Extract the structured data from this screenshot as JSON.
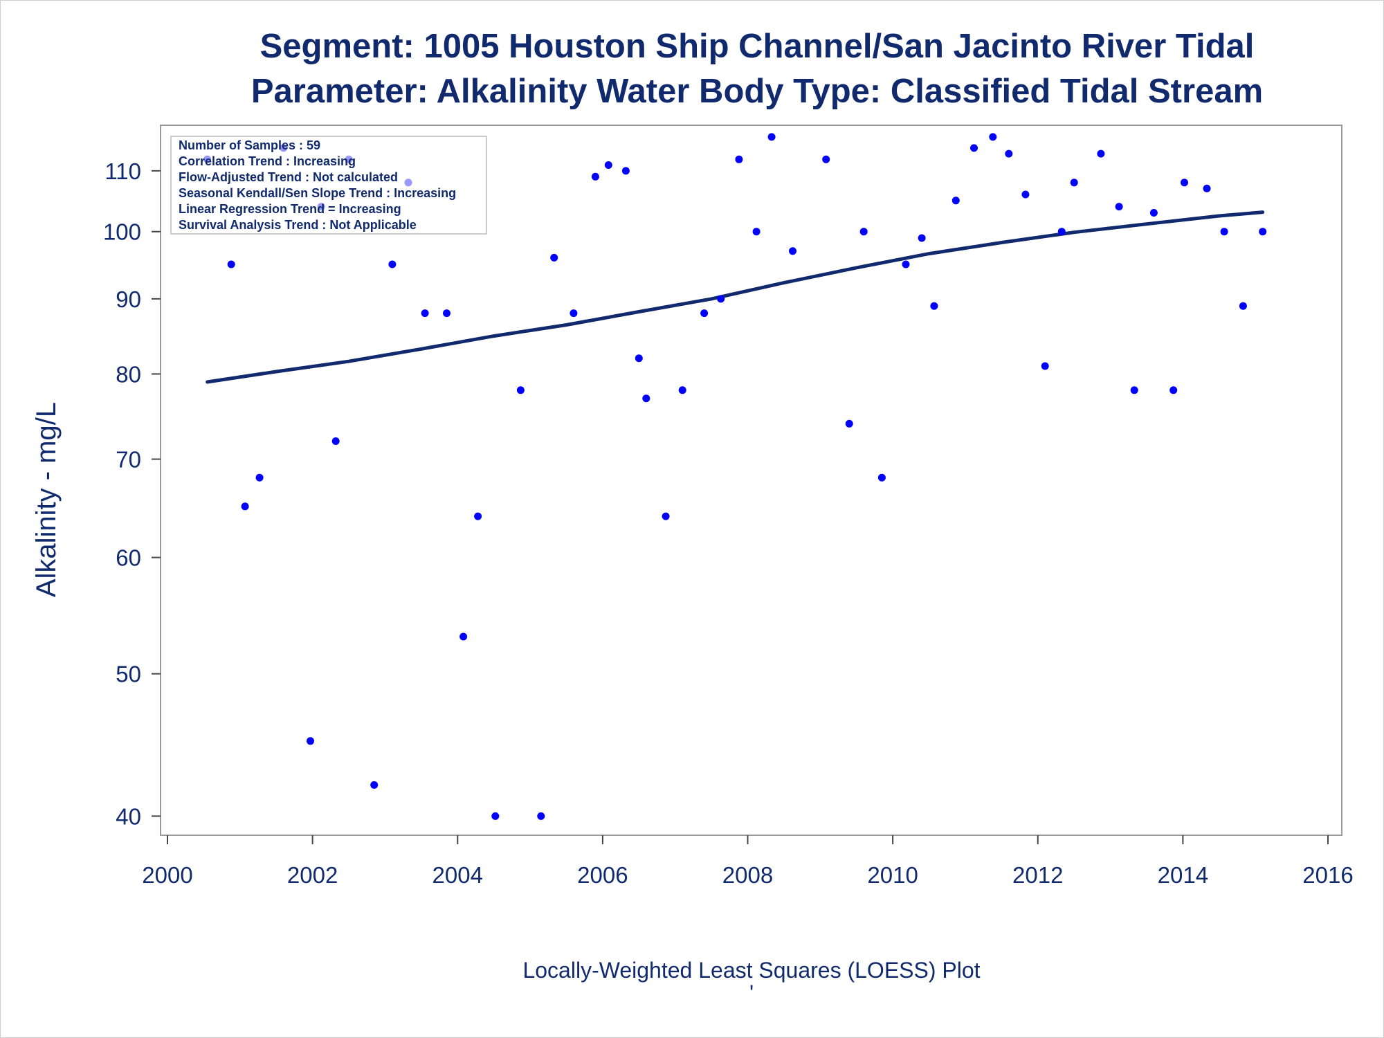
{
  "chart_data": {
    "type": "scatter",
    "title": "Segment: 1005  Houston Ship Channel/San Jacinto River Tidal",
    "subtitle": "Parameter: Alkalinity   Water Body Type: Classified Tidal Stream",
    "xlabel": "Locally-Weighted Least Squares (LOESS) Plot",
    "footnote": "'",
    "ylabel": "Alkalinity - mg/L",
    "y_scale": "log",
    "xlim": [
      2000,
      2016
    ],
    "ylim": [
      39.2,
      117
    ],
    "x_ticks": [
      "2000",
      "2002",
      "2004",
      "2006",
      "2008",
      "2010",
      "2012",
      "2014",
      "2016"
    ],
    "y_ticks": [
      "40",
      "50",
      "60",
      "70",
      "80",
      "90",
      "100",
      "110"
    ],
    "stats_box": {
      "placement": "top-left",
      "lines": [
        "Number of Samples : 59",
        "Correlation Trend : Increasing",
        "Flow-Adjusted Trend : Not calculated",
        "Seasonal Kendall/Sen Slope Trend : Increasing",
        "Linear Regression Trend = Increasing",
        "Survival Analysis Trend : Not Applicable"
      ]
    },
    "series": [
      {
        "type": "scatter",
        "color": "#0000ff",
        "points": [
          [
            2000.55,
            112
          ],
          [
            2000.88,
            95
          ],
          [
            2001.07,
            65
          ],
          [
            2001.27,
            68
          ],
          [
            2001.6,
            114
          ],
          [
            2001.97,
            45
          ],
          [
            2002.12,
            104
          ],
          [
            2002.32,
            72
          ],
          [
            2002.5,
            112
          ],
          [
            2002.85,
            42
          ],
          [
            2003.1,
            95
          ],
          [
            2003.32,
            108
          ],
          [
            2003.55,
            88
          ],
          [
            2003.85,
            88
          ],
          [
            2004.08,
            53
          ],
          [
            2004.28,
            64
          ],
          [
            2004.52,
            40
          ],
          [
            2004.87,
            78
          ],
          [
            2005.15,
            40
          ],
          [
            2005.33,
            96
          ],
          [
            2005.6,
            88
          ],
          [
            2005.9,
            109
          ],
          [
            2006.08,
            111
          ],
          [
            2006.32,
            110
          ],
          [
            2006.5,
            82
          ],
          [
            2006.6,
            77
          ],
          [
            2006.87,
            64
          ],
          [
            2007.1,
            78
          ],
          [
            2007.4,
            88
          ],
          [
            2007.63,
            90
          ],
          [
            2007.88,
            112
          ],
          [
            2008.12,
            100
          ],
          [
            2008.33,
            116
          ],
          [
            2008.62,
            97
          ],
          [
            2009.08,
            112
          ],
          [
            2009.4,
            74
          ],
          [
            2009.6,
            100
          ],
          [
            2009.85,
            68
          ],
          [
            2010.18,
            95
          ],
          [
            2010.4,
            99
          ],
          [
            2010.57,
            89
          ],
          [
            2010.87,
            105
          ],
          [
            2011.12,
            114
          ],
          [
            2011.38,
            116
          ],
          [
            2011.6,
            113
          ],
          [
            2011.83,
            106
          ],
          [
            2012.1,
            81
          ],
          [
            2012.33,
            100
          ],
          [
            2012.5,
            108
          ],
          [
            2012.87,
            113
          ],
          [
            2013.12,
            104
          ],
          [
            2013.33,
            78
          ],
          [
            2013.6,
            103
          ],
          [
            2013.87,
            78
          ],
          [
            2014.02,
            108
          ],
          [
            2014.33,
            107
          ],
          [
            2014.57,
            100
          ],
          [
            2014.83,
            89
          ],
          [
            2015.1,
            100
          ]
        ]
      },
      {
        "type": "line",
        "color": "#112a6e",
        "points": [
          [
            2000.55,
            79
          ],
          [
            2001.5,
            80.3
          ],
          [
            2002.5,
            81.6
          ],
          [
            2003.5,
            83.2
          ],
          [
            2004.5,
            84.9
          ],
          [
            2005.5,
            86.4
          ],
          [
            2006.5,
            88.2
          ],
          [
            2007.5,
            90.0
          ],
          [
            2008.5,
            92.3
          ],
          [
            2009.5,
            94.5
          ],
          [
            2010.5,
            96.6
          ],
          [
            2011.5,
            98.3
          ],
          [
            2012.5,
            99.9
          ],
          [
            2013.5,
            101.2
          ],
          [
            2014.5,
            102.5
          ],
          [
            2015.1,
            103.1
          ]
        ]
      }
    ]
  }
}
